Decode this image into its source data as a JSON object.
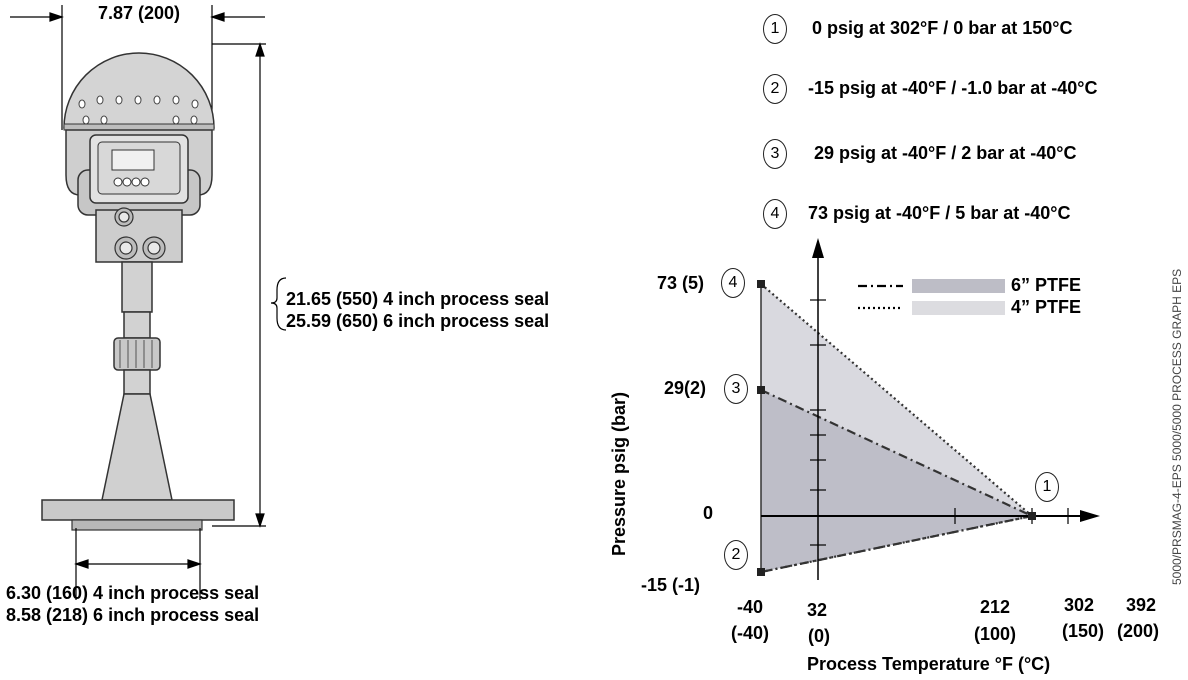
{
  "dimensions": {
    "top_width": "7.87 (200)",
    "height_line1": "21.65 (550) 4 inch process seal",
    "height_line2": "25.59 (650) 6 inch process seal",
    "flange_line1": "6.30 (160) 4 inch process seal",
    "flange_line2": "8.58 (218) 6 inch process seal"
  },
  "conditions": [
    {
      "number": "1",
      "text": "0 psig at 302°F / 0 bar at 150°C"
    },
    {
      "number": "2",
      "text": "-15 psig at -40°F / -1.0 bar at -40°C"
    },
    {
      "number": "3",
      "text": "29 psig at -40°F / 2 bar at -40°C"
    },
    {
      "number": "4",
      "text": "73 psig at -40°F / 5 bar at -40°C"
    }
  ],
  "chart": {
    "ylabel": "Pressure psig (bar)",
    "xlabel": "Process Temperature °F (°C)",
    "y_ticks": [
      {
        "label": "73 (5)",
        "marker": "4"
      },
      {
        "label": "29(2)",
        "marker": "3"
      },
      {
        "label": "0",
        "marker": ""
      },
      {
        "label": "-15 (-1)",
        "marker": "2"
      }
    ],
    "x_ticks": [
      {
        "l1": "-40",
        "l2": "(-40)"
      },
      {
        "l1": "32",
        "l2": "(0)"
      },
      {
        "l1": "212",
        "l2": "(100)"
      },
      {
        "l1": "302",
        "l2": "(150)"
      },
      {
        "l1": "392",
        "l2": "(200)"
      }
    ],
    "legend": [
      {
        "label": "6” PTFE",
        "color": "#bfbfc8",
        "line": "dash-dot"
      },
      {
        "label": "4” PTFE",
        "color": "#dcdce0",
        "line": "dotted"
      }
    ],
    "end_marker": "1"
  },
  "chart_data": {
    "type": "area",
    "xlabel": "Process Temperature °F (°C)",
    "ylabel": "Pressure psig (bar)",
    "x_ticks": [
      -40,
      32,
      212,
      302,
      392
    ],
    "y_ticks": [
      -15,
      0,
      29,
      73
    ],
    "series": [
      {
        "name": "6” PTFE",
        "x": [
          -40,
          302,
          -40
        ],
        "y": [
          29,
          0,
          -15
        ]
      },
      {
        "name": "4” PTFE",
        "x": [
          -40,
          302,
          -40
        ],
        "y": [
          73,
          0,
          -15
        ]
      }
    ]
  },
  "side_code": "5000/PRSMAG-4-EPS 5000/5000 PROCESS GRAPH EPS"
}
